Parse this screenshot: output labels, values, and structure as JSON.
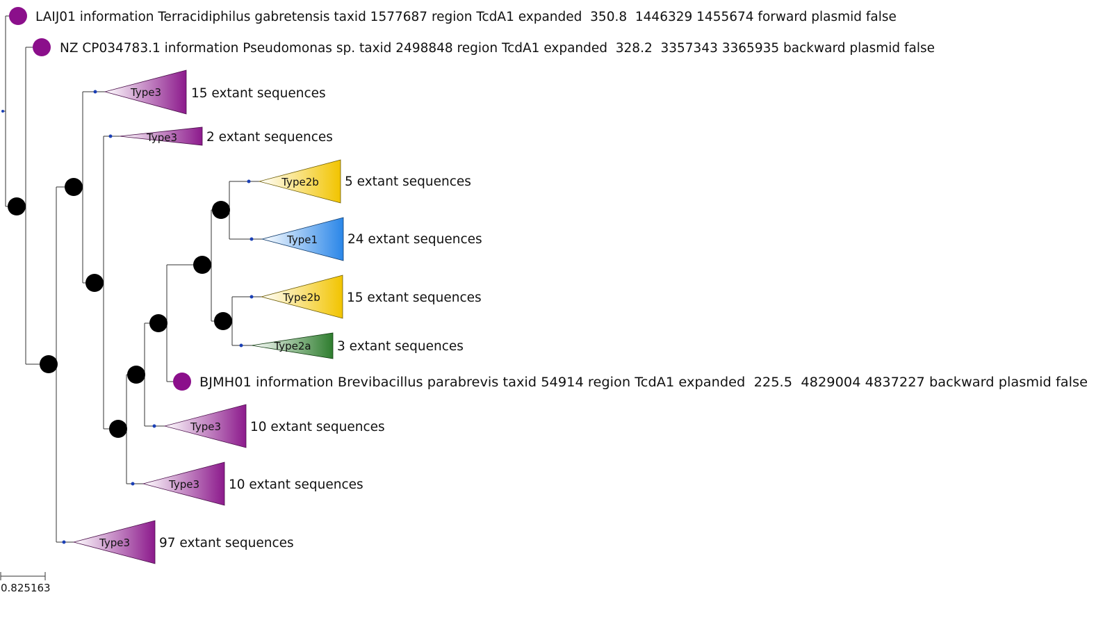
{
  "colors": {
    "type3": "#8c1a8c",
    "type2b": "#f2c400",
    "type1": "#2a86e8",
    "type2a": "#2e7d2e",
    "leaf_marker": "#8b0f8b",
    "node_marker": "#000000",
    "small_node": "#1a3fb5"
  },
  "leaves": [
    {
      "id": "laij01",
      "label": "LAIJ01 information Terracidiphilus gabretensis taxid 1577687 region TcdA1 expanded  350.8  1446329 1455674 forward plasmid false"
    },
    {
      "id": "nz",
      "label": "NZ CP034783.1 information Pseudomonas sp. taxid 2498848 region TcdA1 expanded  328.2  3357343 3365935 backward plasmid false"
    },
    {
      "id": "bjmh01",
      "label": "BJMH01 information Brevibacillus parabrevis taxid 54914 region TcdA1 expanded  225.5  4829004 4837227 backward plasmid false"
    }
  ],
  "clades": [
    {
      "id": "c1",
      "type": "Type3",
      "label": "15 extant sequences",
      "color": "type3"
    },
    {
      "id": "c2",
      "type": "Type3",
      "label": "2 extant sequences",
      "color": "type3"
    },
    {
      "id": "c3",
      "type": "Type2b",
      "label": "5 extant sequences",
      "color": "type2b"
    },
    {
      "id": "c4",
      "type": "Type1",
      "label": "24 extant sequences",
      "color": "type1"
    },
    {
      "id": "c5",
      "type": "Type2b",
      "label": "15 extant sequences",
      "color": "type2b"
    },
    {
      "id": "c6",
      "type": "Type2a",
      "label": "3 extant sequences",
      "color": "type2a"
    },
    {
      "id": "c7",
      "type": "Type3",
      "label": "10 extant sequences",
      "color": "type3"
    },
    {
      "id": "c8",
      "type": "Type3",
      "label": "10 extant sequences",
      "color": "type3"
    },
    {
      "id": "c9",
      "type": "Type3",
      "label": "97 extant sequences",
      "color": "type3"
    }
  ],
  "scale_bar": {
    "label": "0.825163"
  }
}
